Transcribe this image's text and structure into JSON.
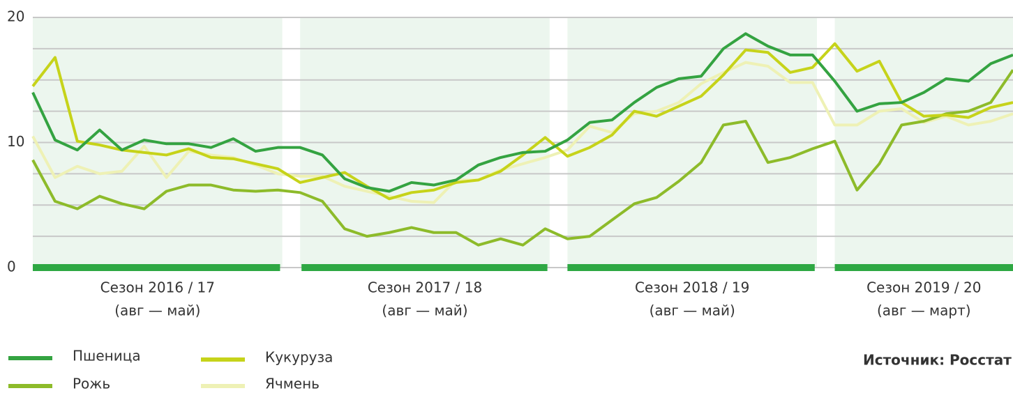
{
  "chart_data": {
    "type": "line",
    "categories": [
      null,
      null,
      null,
      null,
      null,
      null,
      null,
      null,
      null,
      null,
      null,
      null,
      null,
      null,
      null,
      null,
      null,
      null,
      null,
      null,
      null,
      null,
      null,
      null,
      null,
      null,
      null,
      null,
      null,
      null,
      null,
      null,
      null,
      null,
      null,
      null,
      null,
      null,
      null,
      null,
      null,
      null,
      null,
      null,
      null
    ],
    "series": [
      {
        "name": "Пшеница",
        "color": "#34a341",
        "values": [
          14,
          10.2,
          9.4,
          11,
          9.4,
          10.2,
          9.9,
          9.9,
          9.6,
          10.3,
          9.3,
          9.6,
          9.6,
          9.0,
          7.1,
          6.4,
          6.1,
          6.8,
          6.6,
          7.0,
          8.2,
          8.8,
          9.2,
          9.3,
          10.2,
          11.6,
          11.8,
          13.2,
          14.4,
          15.1,
          15.3,
          17.5,
          18.7,
          17.7,
          17,
          17,
          14.9,
          12.5,
          13.1,
          13.2,
          14,
          15.1,
          14.9,
          16.3,
          17
        ]
      },
      {
        "name": "Рожь",
        "color": "#8dbb2a",
        "values": [
          8.6,
          5.3,
          4.7,
          5.7,
          5.1,
          4.7,
          6.1,
          6.6,
          6.6,
          6.2,
          6.1,
          6.2,
          6.0,
          5.3,
          3.1,
          2.5,
          2.8,
          3.2,
          2.8,
          2.8,
          1.8,
          2.3,
          1.8,
          3.1,
          2.3,
          2.5,
          3.8,
          5.1,
          5.6,
          6.9,
          8.4,
          11.4,
          11.7,
          8.4,
          8.8,
          9.5,
          10.1,
          6.2,
          8.3,
          11.4,
          11.7,
          12.3,
          12.5,
          13.2,
          15.8
        ]
      },
      {
        "name": "Кукуруза",
        "color": "#c6d31a",
        "values": [
          14.5,
          16.8,
          10.1,
          9.8,
          9.4,
          9.2,
          9.0,
          9.5,
          8.8,
          8.7,
          8.3,
          7.9,
          6.8,
          7.2,
          7.6,
          6.5,
          5.5,
          6.0,
          6.2,
          6.8,
          7.0,
          7.7,
          9.0,
          10.4,
          8.9,
          9.6,
          10.6,
          12.5,
          12.1,
          12.9,
          13.7,
          15.4,
          17.4,
          17.2,
          15.6,
          16,
          17.9,
          15.7,
          16.5,
          13.2,
          12.1,
          12.2,
          12.0,
          12.8,
          13.2
        ]
      },
      {
        "name": "Ячмень",
        "color": "#eef1b5",
        "values": [
          10.5,
          7.2,
          8.1,
          7.5,
          7.7,
          9.7,
          7.2,
          9.3,
          9.0,
          8.8,
          8.2,
          7.5,
          7.3,
          7.3,
          6.5,
          6.1,
          5.7,
          5.3,
          5.2,
          7.0,
          7.0,
          7.8,
          8.3,
          8.8,
          9.4,
          11.3,
          10.8,
          12.3,
          12.5,
          13.2,
          14.7,
          15.6,
          16.4,
          16.1,
          14.8,
          14.8,
          11.4,
          11.4,
          12.5,
          12.7,
          11.6,
          12.1,
          11.4,
          11.7,
          12.3
        ]
      }
    ],
    "ylim": [
      0,
      20
    ],
    "yticks": [
      0,
      10,
      20
    ],
    "minor_yticks": [
      2.5,
      5,
      7.5,
      12.5,
      15,
      17.5
    ],
    "grid": true,
    "seasons": [
      {
        "label": "Сезон 2016 / 17",
        "period": "(авг — май)"
      },
      {
        "label": "Сезон 2017 / 18",
        "period": "(авг — май)"
      },
      {
        "label": "Сезон 2018 / 19",
        "period": "(авг — май)"
      },
      {
        "label": "Сезон 2019 / 20",
        "period": "(авг — март)"
      }
    ],
    "source": "Источник: Росстат"
  }
}
